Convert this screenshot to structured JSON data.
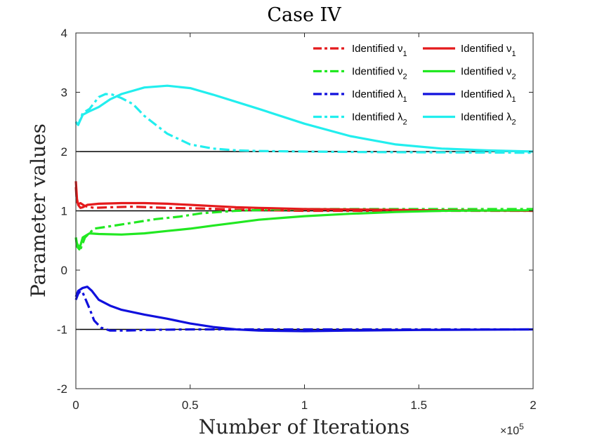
{
  "chart_data": {
    "type": "line",
    "title": "Case IV",
    "xlabel": "Number of Iterations",
    "ylabel": "Parameter values",
    "x_multiplier": "×10",
    "x_multiplier_exp": "5",
    "xlim": [
      0,
      2
    ],
    "ylim": [
      -2,
      4
    ],
    "xticks": [
      0,
      0.5,
      1,
      1.5,
      2
    ],
    "xtick_labels": [
      "0",
      "0.5",
      "1",
      "1.5",
      "2"
    ],
    "yticks": [
      -2,
      -1,
      0,
      1,
      2,
      3,
      4
    ],
    "ytick_labels": [
      "-2",
      "-1",
      "0",
      "1",
      "2",
      "3",
      "4"
    ],
    "reference_lines": [
      2,
      1,
      -1
    ],
    "legend_position": "top-right",
    "series": [
      {
        "name": "Identified ν1",
        "legend_text": "Identified ν",
        "legend_sub": "1",
        "color": "#e41a1c",
        "style": "dashdot",
        "x": [
          0,
          0.005,
          0.02,
          0.04,
          0.08,
          0.15,
          0.25,
          0.4,
          0.55,
          0.7,
          0.85,
          1.0,
          1.2,
          1.5,
          2.0
        ],
        "y": [
          1.4,
          1.1,
          1.13,
          1.08,
          1.05,
          1.06,
          1.07,
          1.05,
          1.04,
          1.02,
          1.01,
          1.0,
          1.0,
          1.0,
          1.0
        ]
      },
      {
        "name": "Identified ν2",
        "legend_text": "Identified ν",
        "legend_sub": "2",
        "color": "#22e822",
        "style": "dashdot",
        "x": [
          0,
          0.005,
          0.02,
          0.04,
          0.08,
          0.15,
          0.2,
          0.25,
          0.35,
          0.45,
          0.55,
          0.7,
          0.85,
          1.0,
          1.3,
          2.0
        ],
        "y": [
          0.55,
          0.45,
          0.35,
          0.55,
          0.7,
          0.74,
          0.77,
          0.8,
          0.86,
          0.9,
          0.96,
          1.0,
          1.02,
          1.03,
          1.03,
          1.03
        ]
      },
      {
        "name": "Identified λ1",
        "legend_text": "Identified λ",
        "legend_sub": "1",
        "color": "#1010dd",
        "style": "dashdot",
        "x": [
          0,
          0.01,
          0.02,
          0.03,
          0.06,
          0.08,
          0.11,
          0.15,
          0.22,
          0.3,
          0.5,
          0.8,
          1.0,
          1.5,
          2.0
        ],
        "y": [
          -0.5,
          -0.4,
          -0.35,
          -0.38,
          -0.65,
          -0.85,
          -0.97,
          -1.02,
          -1.02,
          -1.01,
          -1.0,
          -1.0,
          -1.0,
          -1.0,
          -1.0
        ]
      },
      {
        "name": "Identified λ2",
        "legend_text": "Identified λ",
        "legend_sub": "2",
        "color": "#22eeee",
        "style": "dashdot",
        "x": [
          0,
          0.01,
          0.03,
          0.06,
          0.1,
          0.13,
          0.16,
          0.2,
          0.25,
          0.3,
          0.35,
          0.4,
          0.5,
          0.6,
          0.7,
          0.8,
          1.0,
          1.3,
          2.0
        ],
        "y": [
          2.5,
          2.45,
          2.65,
          2.72,
          2.92,
          2.97,
          2.96,
          2.9,
          2.8,
          2.6,
          2.45,
          2.3,
          2.12,
          2.05,
          2.02,
          2.01,
          2.0,
          1.99,
          1.98
        ]
      },
      {
        "name": "Identified ν1 (solid)",
        "legend_text": "Identified ν",
        "legend_sub": "1",
        "color": "#e41a1c",
        "style": "solid",
        "x": [
          0,
          0.005,
          0.01,
          0.02,
          0.03,
          0.05,
          0.1,
          0.2,
          0.3,
          0.4,
          0.5,
          0.6,
          0.7,
          0.8,
          1.0,
          1.3,
          1.6,
          2.0
        ],
        "y": [
          1.5,
          1.2,
          1.1,
          1.05,
          1.06,
          1.1,
          1.12,
          1.13,
          1.13,
          1.12,
          1.1,
          1.08,
          1.06,
          1.05,
          1.03,
          1.02,
          1.01,
          1.0
        ]
      },
      {
        "name": "Identified ν2 (solid)",
        "legend_text": "Identified ν",
        "legend_sub": "2",
        "color": "#22e822",
        "style": "solid",
        "x": [
          0,
          0.005,
          0.015,
          0.03,
          0.06,
          0.1,
          0.2,
          0.3,
          0.4,
          0.5,
          0.6,
          0.7,
          0.8,
          0.9,
          1.0,
          1.2,
          1.4,
          1.6,
          2.0
        ],
        "y": [
          0.55,
          0.4,
          0.35,
          0.55,
          0.62,
          0.61,
          0.6,
          0.62,
          0.66,
          0.7,
          0.75,
          0.8,
          0.85,
          0.88,
          0.91,
          0.95,
          0.98,
          1.0,
          1.01
        ]
      },
      {
        "name": "Identified λ1 (solid)",
        "legend_text": "Identified λ",
        "legend_sub": "1",
        "color": "#1010dd",
        "style": "solid",
        "x": [
          0,
          0.01,
          0.03,
          0.05,
          0.07,
          0.1,
          0.15,
          0.2,
          0.3,
          0.4,
          0.5,
          0.6,
          0.7,
          0.8,
          1.0,
          1.2,
          1.5,
          2.0
        ],
        "y": [
          -0.45,
          -0.35,
          -0.3,
          -0.28,
          -0.35,
          -0.5,
          -0.6,
          -0.67,
          -0.75,
          -0.82,
          -0.9,
          -0.96,
          -1.0,
          -1.02,
          -1.03,
          -1.02,
          -1.01,
          -1.0
        ]
      },
      {
        "name": "Identified λ2 (solid)",
        "legend_text": "Identified λ",
        "legend_sub": "2",
        "color": "#22eeee",
        "style": "solid",
        "x": [
          0,
          0.01,
          0.03,
          0.06,
          0.1,
          0.15,
          0.2,
          0.3,
          0.4,
          0.5,
          0.6,
          0.8,
          1.0,
          1.2,
          1.4,
          1.6,
          1.8,
          2.0
        ],
        "y": [
          2.5,
          2.45,
          2.62,
          2.68,
          2.75,
          2.88,
          2.97,
          3.08,
          3.11,
          3.07,
          2.96,
          2.72,
          2.47,
          2.26,
          2.12,
          2.05,
          2.02,
          2.0
        ]
      }
    ]
  }
}
